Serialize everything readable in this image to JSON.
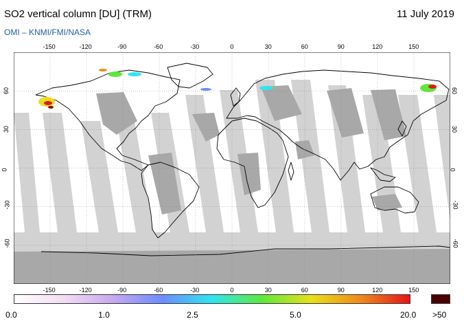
{
  "header": {
    "title": "SO2 vertical column [DU] (TRM)",
    "date": "11 July 2019",
    "credit": "OMI  –  KNMI/FMI/NASA"
  },
  "map": {
    "lon_ticks": [
      "-150",
      "-120",
      "-90",
      "-60",
      "-30",
      "0",
      "30",
      "60",
      "90",
      "120",
      "150"
    ],
    "lat_ticks": [
      "60",
      "30",
      "0",
      "-30",
      "-60"
    ],
    "colors": {
      "ocean": "#ffffff",
      "no_data": "#d2d2d2",
      "land_shade": "#a8a8a8",
      "coast": "#000000",
      "grid": "#888888"
    }
  },
  "colorbar": {
    "labels": [
      "0.0",
      "1.0",
      "2.5",
      "5.0",
      "20.0"
    ],
    "overflow_label": ">50",
    "overflow_color": "#4a0000",
    "stops": [
      "#ffffff",
      "#f2ddf2",
      "#c7a8f0",
      "#6b8cff",
      "#2ee6ee",
      "#5ee83c",
      "#e8e01a",
      "#f08a1a",
      "#e6141a"
    ]
  }
}
